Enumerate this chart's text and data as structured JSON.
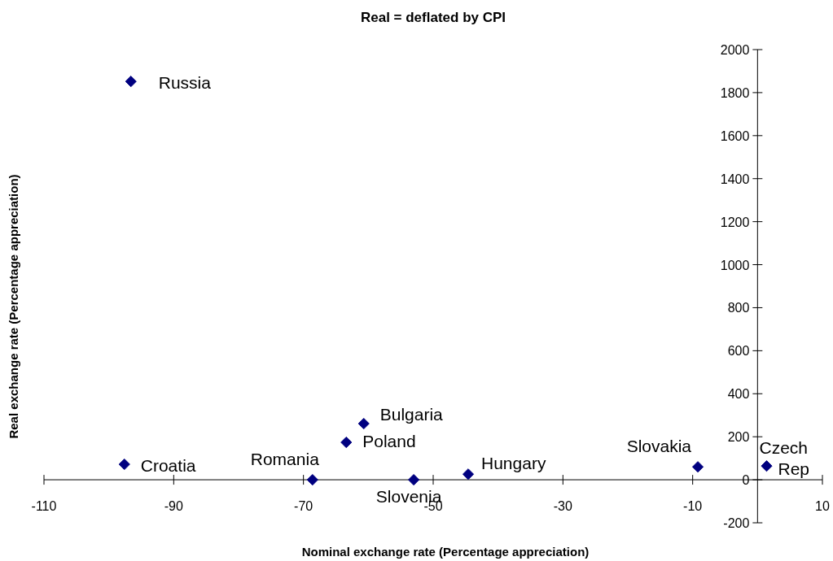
{
  "chart_data": {
    "type": "scatter",
    "title": "Real = deflated by CPI",
    "xlabel": "Nominal exchange rate (Percentage appreciation)",
    "ylabel": "Real exchange rate (Percentage appreciation)",
    "x": [
      -96.6,
      -97.6,
      -68.6,
      -53.0,
      -63.4,
      -60.7,
      -44.6,
      -9.2,
      1.4
    ],
    "series": [
      {
        "color": "#000080",
        "values": [
          1852,
          72,
          0,
          0,
          174,
          261,
          26,
          60,
          64
        ]
      }
    ],
    "marker": "diamond",
    "grid": false,
    "xlim": [
      -110,
      10
    ],
    "xticks": [
      -110,
      -90,
      -70,
      -50,
      -30,
      -10,
      10
    ],
    "ylim": [
      -200,
      2000
    ],
    "yticks": [
      -200,
      0,
      200,
      400,
      600,
      800,
      1000,
      1200,
      1400,
      1600,
      1800,
      2000
    ],
    "annotations": [
      {
        "text": "Russia",
        "x": -96.6,
        "y": 1852
      },
      {
        "text": "Croatia",
        "x": -97.6,
        "y": 72
      },
      {
        "text": "Romania",
        "x": -68.6,
        "y": 0
      },
      {
        "text": "Slovenia",
        "x": -53.0,
        "y": 0
      },
      {
        "text": "Poland",
        "x": -63.4,
        "y": 174
      },
      {
        "text": "Bulgaria",
        "x": -60.7,
        "y": 261
      },
      {
        "text": "Hungary",
        "x": -44.6,
        "y": 26
      },
      {
        "text": "Slovakia",
        "x": -9.2,
        "y": 60
      },
      {
        "text": "Czech Rep",
        "x": 1.4,
        "y": 64
      }
    ]
  }
}
